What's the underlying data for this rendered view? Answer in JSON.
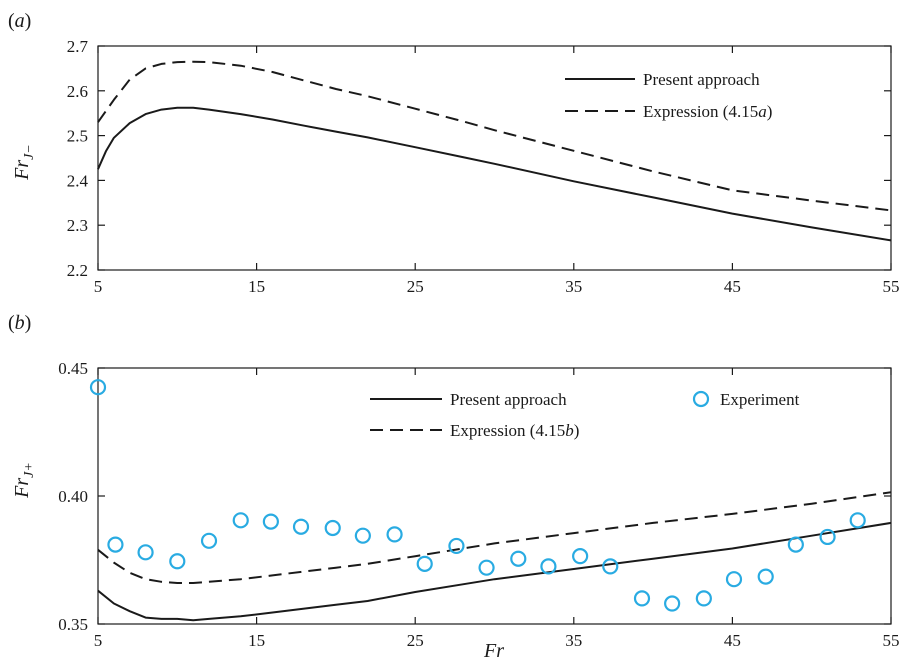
{
  "chart_data": [
    {
      "panel_label": "(a)",
      "type": "line",
      "xlabel": "",
      "ylabel": "Fr_{J−}",
      "xlim": [
        5,
        55
      ],
      "ylim": [
        2.2,
        2.7
      ],
      "xticks": [
        5,
        15,
        25,
        35,
        45,
        55
      ],
      "yticks": [
        2.2,
        2.3,
        2.4,
        2.5,
        2.6,
        2.7
      ],
      "xtick_labels": [
        "5",
        "15",
        "25",
        "35",
        "45",
        "55"
      ],
      "ytick_labels": [
        "2.2",
        "2.3",
        "2.4",
        "2.5",
        "2.6",
        "2.7"
      ],
      "legend_position": "top-right",
      "series": [
        {
          "name": "Present approach",
          "style": "solid",
          "color": "#1a1a1a",
          "x": [
            5,
            5.5,
            6,
            7,
            8,
            9,
            10,
            11,
            12,
            14,
            16,
            18,
            20,
            22,
            25,
            28,
            30,
            35,
            40,
            45,
            50,
            55
          ],
          "y": [
            2.425,
            2.465,
            2.495,
            2.528,
            2.548,
            2.558,
            2.562,
            2.562,
            2.558,
            2.548,
            2.536,
            2.522,
            2.509,
            2.496,
            2.474,
            2.452,
            2.437,
            2.398,
            2.362,
            2.326,
            2.295,
            2.266
          ]
        },
        {
          "name": "Expression (4.15a)",
          "style": "dashed",
          "color": "#1a1a1a",
          "x": [
            5,
            6,
            7,
            8,
            9,
            10,
            11,
            12,
            14,
            16,
            18,
            20,
            22,
            25,
            28,
            30,
            35,
            40,
            45,
            50,
            55
          ],
          "y": [
            2.53,
            2.58,
            2.625,
            2.65,
            2.66,
            2.664,
            2.665,
            2.664,
            2.656,
            2.642,
            2.623,
            2.604,
            2.588,
            2.56,
            2.532,
            2.512,
            2.466,
            2.42,
            2.378,
            2.355,
            2.333
          ]
        }
      ]
    },
    {
      "panel_label": "(b)",
      "type": "line",
      "xlabel": "Fr",
      "ylabel": "Fr_{J+}",
      "xlim": [
        5,
        55
      ],
      "ylim": [
        0.35,
        0.45
      ],
      "xticks": [
        5,
        15,
        25,
        35,
        45,
        55
      ],
      "yticks": [
        0.35,
        0.4,
        0.45
      ],
      "xtick_labels": [
        "5",
        "15",
        "25",
        "35",
        "45",
        "55"
      ],
      "ytick_labels": [
        "0.35",
        "0.40",
        "0.45"
      ],
      "legend_position": "top",
      "series": [
        {
          "name": "Present approach",
          "style": "solid",
          "color": "#1a1a1a",
          "x": [
            5,
            6,
            7,
            8,
            9,
            10,
            11,
            12,
            14,
            16,
            18,
            20,
            22,
            25,
            28,
            30,
            35,
            40,
            45,
            50,
            55
          ],
          "y": [
            0.363,
            0.358,
            0.355,
            0.3525,
            0.352,
            0.352,
            0.3515,
            0.352,
            0.353,
            0.3545,
            0.356,
            0.3575,
            0.359,
            0.3625,
            0.3655,
            0.3675,
            0.3715,
            0.3755,
            0.3795,
            0.3845,
            0.3895
          ]
        },
        {
          "name": "Expression (4.15b)",
          "style": "dashed",
          "color": "#1a1a1a",
          "x": [
            5,
            6,
            7,
            8,
            9,
            10,
            11,
            12,
            14,
            16,
            18,
            20,
            22,
            25,
            28,
            30,
            35,
            40,
            45,
            50,
            55
          ],
          "y": [
            0.379,
            0.374,
            0.37,
            0.3675,
            0.3665,
            0.366,
            0.366,
            0.3665,
            0.3675,
            0.369,
            0.3705,
            0.372,
            0.3735,
            0.3765,
            0.3795,
            0.3815,
            0.3855,
            0.3895,
            0.393,
            0.397,
            0.4015
          ]
        },
        {
          "name": "Experiment",
          "style": "markers",
          "color": "#29abe2",
          "x": [
            5,
            6.1,
            8,
            10,
            12,
            14,
            15.9,
            17.8,
            19.8,
            21.7,
            23.7,
            25.6,
            27.6,
            29.5,
            31.5,
            33.4,
            35.4,
            37.3,
            39.3,
            41.2,
            43.2,
            45.1,
            47.1,
            49,
            51,
            52.9
          ],
          "y": [
            0.4425,
            0.381,
            0.378,
            0.3745,
            0.3825,
            0.3905,
            0.39,
            0.388,
            0.3875,
            0.3845,
            0.385,
            0.3735,
            0.3805,
            0.372,
            0.3755,
            0.3725,
            0.3765,
            0.3725,
            0.36,
            0.358,
            0.36,
            0.3675,
            0.3685,
            0.381,
            0.384,
            0.3905
          ]
        }
      ]
    }
  ],
  "colors": {
    "ink": "#1a1a1a",
    "experiment": "#29abe2"
  }
}
